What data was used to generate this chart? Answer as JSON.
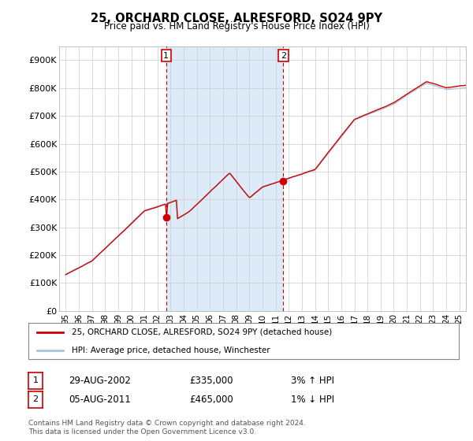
{
  "title": "25, ORCHARD CLOSE, ALRESFORD, SO24 9PY",
  "subtitle": "Price paid vs. HM Land Registry's House Price Index (HPI)",
  "ylabel_ticks": [
    "£0",
    "£100K",
    "£200K",
    "£300K",
    "£400K",
    "£500K",
    "£600K",
    "£700K",
    "£800K",
    "£900K"
  ],
  "ytick_values": [
    0,
    100000,
    200000,
    300000,
    400000,
    500000,
    600000,
    700000,
    800000,
    900000
  ],
  "ylim": [
    0,
    950000
  ],
  "xlim_start": 1994.5,
  "xlim_end": 2025.5,
  "hpi_color": "#aac4e0",
  "price_color": "#cc0000",
  "shade_color": "#ddeaf7",
  "marker1_date": 2002.66,
  "marker1_value": 335000,
  "marker1_label": "1",
  "marker2_date": 2011.59,
  "marker2_value": 465000,
  "marker2_label": "2",
  "legend_line1": "25, ORCHARD CLOSE, ALRESFORD, SO24 9PY (detached house)",
  "legend_line2": "HPI: Average price, detached house, Winchester",
  "table_row1_num": "1",
  "table_row1_date": "29-AUG-2002",
  "table_row1_price": "£335,000",
  "table_row1_hpi": "3% ↑ HPI",
  "table_row2_num": "2",
  "table_row2_date": "05-AUG-2011",
  "table_row2_price": "£465,000",
  "table_row2_hpi": "1% ↓ HPI",
  "footer": "Contains HM Land Registry data © Crown copyright and database right 2024.\nThis data is licensed under the Open Government Licence v3.0.",
  "background_color": "#ffffff",
  "grid_color": "#cccccc"
}
